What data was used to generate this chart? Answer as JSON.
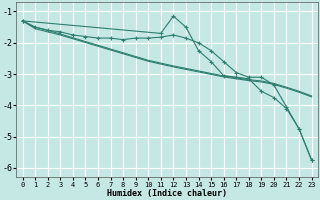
{
  "xlabel": "Humidex (Indice chaleur)",
  "ylabel": "",
  "bg_color": "#c5e8e5",
  "grid_color": "#ffffff",
  "line_color": "#2e7d6e",
  "xlim": [
    -0.5,
    23.5
  ],
  "ylim": [
    -6.3,
    -0.7
  ],
  "yticks": [
    -6,
    -5,
    -4,
    -3,
    -2,
    -1
  ],
  "xticks": [
    0,
    1,
    2,
    3,
    4,
    5,
    6,
    7,
    8,
    9,
    10,
    11,
    12,
    13,
    14,
    15,
    16,
    17,
    18,
    19,
    20,
    21,
    22,
    23
  ],
  "line1_x": [
    0,
    1,
    2,
    3,
    4,
    5,
    6,
    7,
    8,
    9,
    10,
    11,
    12,
    13,
    14,
    15,
    16,
    17,
    18,
    19,
    20,
    21,
    22,
    23
  ],
  "line1_y": [
    -1.3,
    -1.5,
    -1.6,
    -1.65,
    -1.75,
    -1.8,
    -1.85,
    -1.85,
    -1.9,
    -1.85,
    -1.85,
    -1.82,
    -1.75,
    -1.85,
    -2.0,
    -2.25,
    -2.6,
    -2.95,
    -3.1,
    -3.1,
    -3.35,
    -4.05,
    -4.75,
    -5.75
  ],
  "line2_x": [
    0,
    1,
    2,
    3,
    4,
    5,
    6,
    7,
    8,
    9,
    10,
    11,
    12,
    13,
    14,
    15,
    16,
    17,
    18,
    19,
    20,
    21,
    22,
    23
  ],
  "line2_y": [
    -1.3,
    -1.5,
    -1.6,
    -1.72,
    -1.84,
    -1.96,
    -2.08,
    -2.2,
    -2.32,
    -2.44,
    -2.56,
    -2.65,
    -2.74,
    -2.82,
    -2.9,
    -2.98,
    -3.06,
    -3.12,
    -3.18,
    -3.22,
    -3.3,
    -3.42,
    -3.55,
    -3.7
  ],
  "line3_x": [
    0,
    1,
    2,
    3,
    4,
    5,
    6,
    7,
    8,
    9,
    10,
    11,
    12,
    13,
    14,
    15,
    16,
    17,
    18,
    19,
    20,
    21,
    22,
    23
  ],
  "line3_y": [
    -1.3,
    -1.55,
    -1.65,
    -1.75,
    -1.87,
    -1.99,
    -2.11,
    -2.23,
    -2.35,
    -2.47,
    -2.59,
    -2.68,
    -2.77,
    -2.85,
    -2.93,
    -3.01,
    -3.09,
    -3.15,
    -3.21,
    -3.25,
    -3.33,
    -3.45,
    -3.58,
    -3.73
  ],
  "line4_x": [
    0,
    11,
    12,
    13,
    14,
    15,
    16,
    17,
    18,
    19,
    20,
    21,
    22,
    23
  ],
  "line4_y": [
    -1.3,
    -1.7,
    -1.15,
    -1.5,
    -2.25,
    -2.6,
    -3.05,
    -3.1,
    -3.15,
    -3.55,
    -3.75,
    -4.1,
    -4.75,
    -5.75
  ]
}
